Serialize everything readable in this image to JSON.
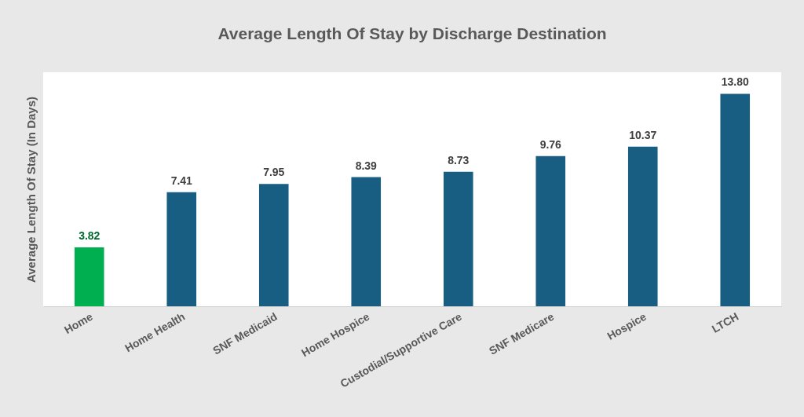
{
  "chart_data": {
    "type": "bar",
    "title": "Average Length Of Stay by Discharge Destination",
    "ylabel": "Average Length Of Stay (In Days)",
    "categories": [
      "Home",
      "Home Health",
      "SNF Medicaid",
      "Home Hospice",
      "Custodial/Supportive Care",
      "SNF Medicare",
      "Hospice",
      "LTCH"
    ],
    "values": [
      3.82,
      7.41,
      7.95,
      8.39,
      8.73,
      9.76,
      10.37,
      13.8
    ],
    "value_labels": [
      "3.82",
      "7.41",
      "7.95",
      "8.39",
      "8.73",
      "9.76",
      "10.37",
      "13.80"
    ],
    "colors": [
      "#00b050",
      "#175e82",
      "#175e82",
      "#175e82",
      "#175e82",
      "#175e82",
      "#175e82",
      "#175e82"
    ],
    "ylim": [
      0,
      15.2
    ],
    "tick_labels": "x",
    "grid": false
  }
}
